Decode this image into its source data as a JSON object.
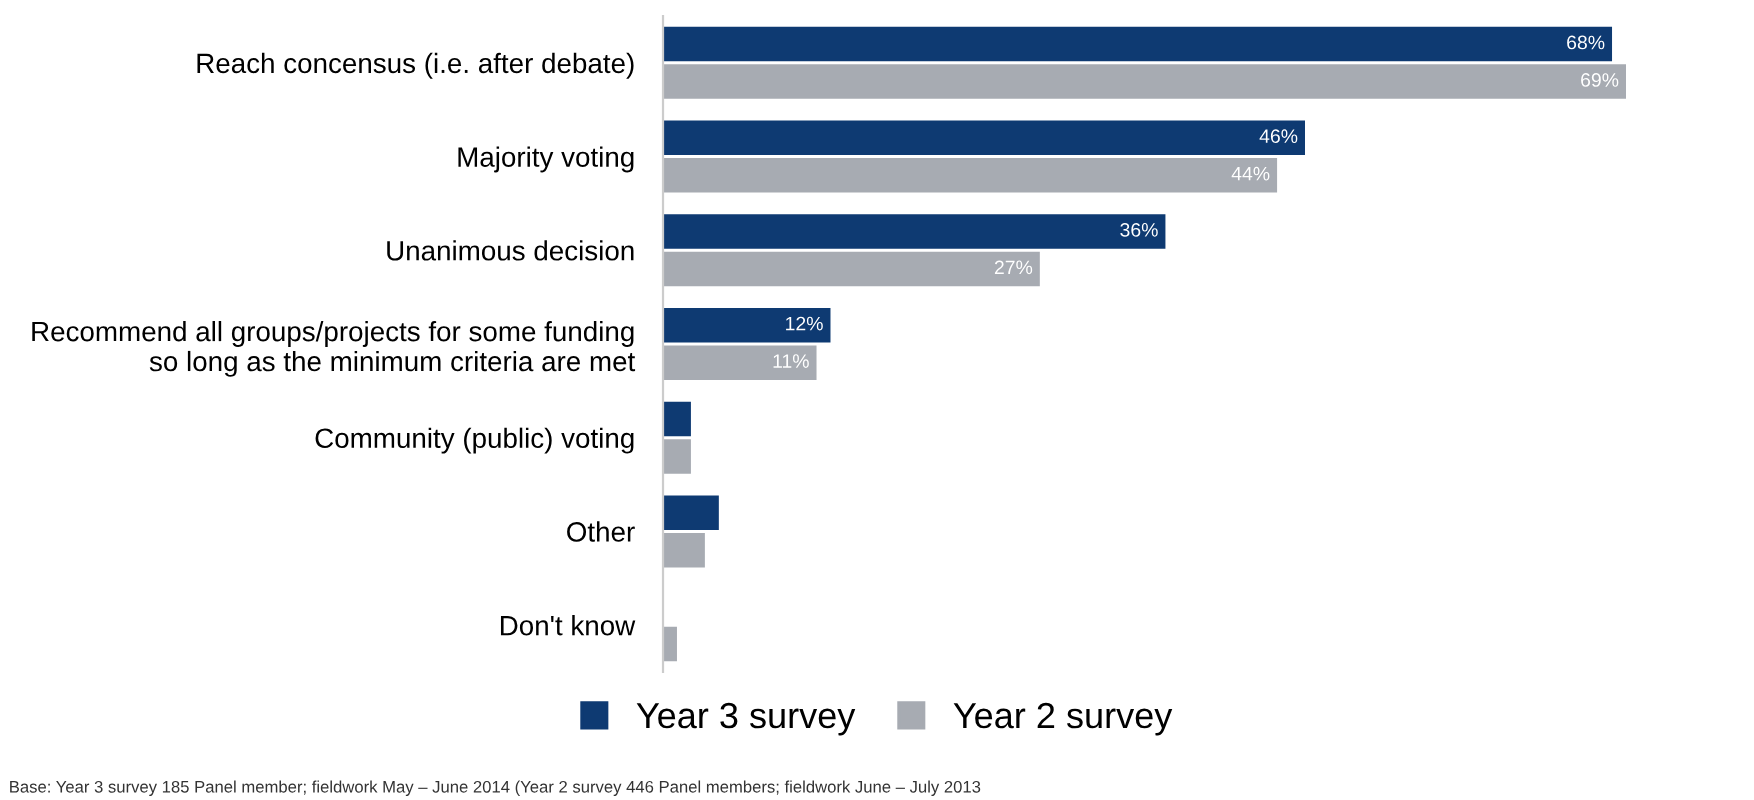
{
  "chart_data": {
    "type": "bar",
    "orientation": "horizontal",
    "categories": [
      "Reach concensus (i.e. after debate)",
      "Majority voting",
      "Unanimous decision",
      "Recommend all groups/projects for some funding\nso long as the minimum criteria are met",
      "Community (public) voting",
      "Other",
      "Don't know"
    ],
    "series": [
      {
        "name": "Year 3 survey",
        "color": "#0e3a72",
        "values": [
          68,
          46,
          36,
          12,
          2,
          4,
          0
        ],
        "value_labels": [
          "68%",
          "46%",
          "36%",
          "12%",
          null,
          null,
          null
        ]
      },
      {
        "name": "Year 2 survey",
        "color": "#a7abb2",
        "values": [
          69,
          44,
          27,
          11,
          2,
          3,
          1
        ],
        "value_labels": [
          "69%",
          "44%",
          "27%",
          "11%",
          null,
          null,
          null
        ]
      }
    ],
    "legend": "bottom",
    "grid": false,
    "annotations": [
      "Base: Year 3 survey 185 Panel member; fieldwork May – June 2014 (Year 2 survey 446 Panel members; fieldwork June – July 2013"
    ]
  }
}
